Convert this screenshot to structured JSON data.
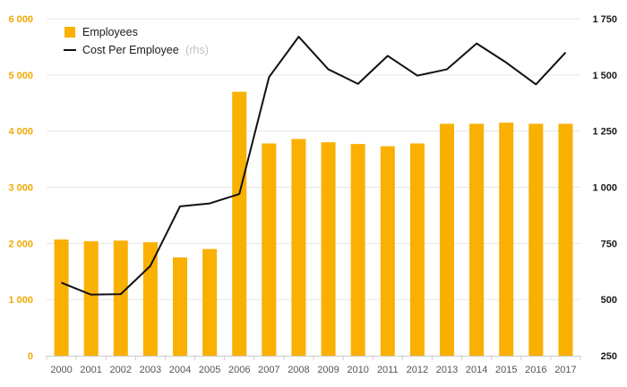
{
  "colors": {
    "bar": "#f9b000",
    "line": "#111111",
    "left_axis_text": "#f2a900",
    "right_axis_text": "#1a1a1a",
    "grid": "#e6e6e6"
  },
  "legend": {
    "employees_label": "Employees",
    "cost_label": "Cost Per Employee",
    "cost_suffix": "(rhs)"
  },
  "chart_data": {
    "type": "bar",
    "title": "",
    "xlabel": "",
    "ylabel": "",
    "categories": [
      "2000",
      "2001",
      "2002",
      "2003",
      "2004",
      "2005",
      "2006",
      "2007",
      "2008",
      "2009",
      "2010",
      "2011",
      "2012",
      "2013",
      "2014",
      "2015",
      "2016",
      "2017"
    ],
    "series": [
      {
        "name": "Employees",
        "type": "bar",
        "axis": "left",
        "values": [
          2070,
          2040,
          2050,
          2020,
          1750,
          1900,
          4700,
          3780,
          3860,
          3800,
          3770,
          3730,
          3780,
          4130,
          4130,
          4150,
          4130,
          4130
        ]
      },
      {
        "name": "Cost Per Employee (rhs)",
        "type": "line",
        "axis": "right",
        "values": [
          575,
          522,
          524,
          650,
          915,
          928,
          970,
          1490,
          1670,
          1525,
          1460,
          1585,
          1497,
          1525,
          1640,
          1555,
          1458,
          1600
        ]
      }
    ],
    "ylim_left": [
      0,
      6000
    ],
    "yticks_left": [
      "0",
      "1 000",
      "2 000",
      "3 000",
      "4 000",
      "5 000",
      "6 000"
    ],
    "yticks_left_values": [
      0,
      1000,
      2000,
      3000,
      4000,
      5000,
      6000
    ],
    "ylim_right": [
      250,
      1750
    ],
    "yticks_right": [
      "250",
      "500",
      "750",
      "1 000",
      "1 250",
      "1 500",
      "1 750"
    ],
    "yticks_right_values": [
      250,
      500,
      750,
      1000,
      1250,
      1500,
      1750
    ],
    "grid": true,
    "legend_position": "top-left"
  }
}
